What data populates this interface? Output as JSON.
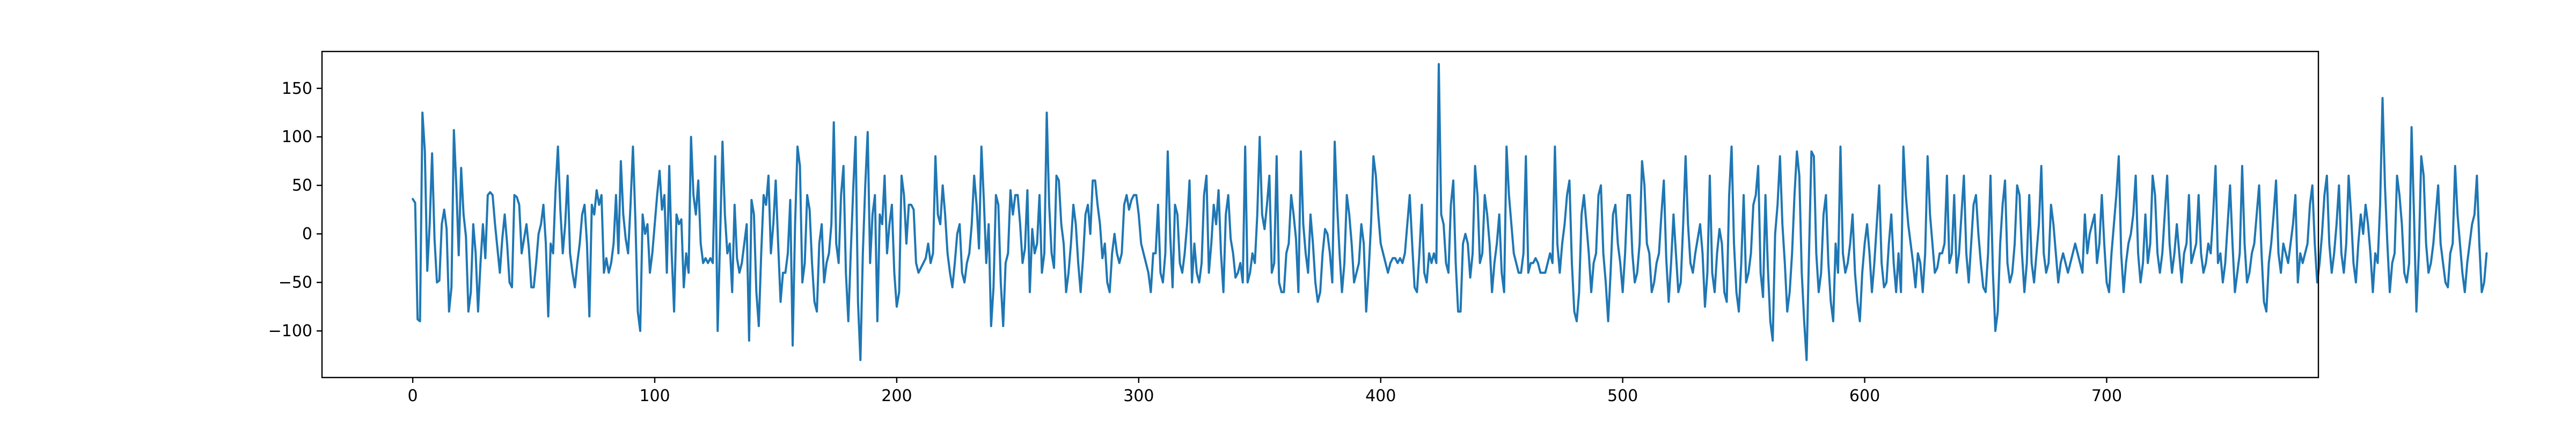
{
  "chart_data": {
    "type": "line",
    "title": "",
    "xlabel": "",
    "ylabel": "",
    "xlim": [
      -37.5,
      787.5
    ],
    "ylim": [
      -148,
      188
    ],
    "x_ticks": [
      0,
      100,
      200,
      300,
      400,
      500,
      600,
      700
    ],
    "y_ticks": [
      -100,
      -50,
      0,
      50,
      100,
      150
    ],
    "x_tick_labels": [
      "0",
      "100",
      "200",
      "300",
      "400",
      "500",
      "600",
      "700"
    ],
    "y_tick_labels": [
      "−100",
      "−50",
      "0",
      "50",
      "100",
      "150"
    ],
    "grid": false,
    "legend": "none",
    "series": [
      {
        "color": "#1f77b4",
        "x_start": 0,
        "x_step": 1,
        "values": [
          36,
          32,
          -88,
          -90,
          125,
          85,
          -38,
          10,
          83,
          -5,
          -50,
          -48,
          10,
          25,
          5,
          -80,
          -55,
          107,
          50,
          -22,
          68,
          20,
          -3,
          -80,
          -60,
          10,
          -20,
          -80,
          -30,
          10,
          -25,
          40,
          43,
          40,
          10,
          -15,
          -40,
          -5,
          20,
          -10,
          -50,
          -55,
          40,
          38,
          30,
          -20,
          -5,
          10,
          -15,
          -55,
          -55,
          -30,
          0,
          10,
          30,
          -10,
          -85,
          -10,
          -20,
          45,
          90,
          25,
          -20,
          10,
          60,
          -20,
          -40,
          -55,
          -30,
          -10,
          20,
          30,
          -10,
          -85,
          30,
          20,
          45,
          30,
          40,
          -40,
          -25,
          -40,
          -30,
          -10,
          40,
          -20,
          75,
          20,
          -5,
          -20,
          30,
          90,
          15,
          -80,
          -100,
          20,
          0,
          10,
          -40,
          -20,
          10,
          40,
          65,
          25,
          40,
          -40,
          70,
          -20,
          -80,
          20,
          10,
          15,
          -55,
          -20,
          -40,
          100,
          40,
          20,
          55,
          -10,
          -30,
          -25,
          -30,
          -25,
          -30,
          80,
          -100,
          -5,
          95,
          20,
          -20,
          -10,
          -60,
          30,
          -25,
          -40,
          -30,
          -10,
          10,
          -110,
          35,
          20,
          -60,
          -95,
          -20,
          40,
          30,
          60,
          -20,
          10,
          55,
          -10,
          -70,
          -40,
          -40,
          -20,
          35,
          -115,
          10,
          90,
          70,
          -50,
          -30,
          40,
          25,
          -30,
          -70,
          -80,
          -10,
          10,
          -50,
          -30,
          -20,
          10,
          115,
          -10,
          -30,
          40,
          70,
          -40,
          -90,
          -20,
          45,
          100,
          -70,
          -130,
          -20,
          50,
          105,
          -30,
          20,
          40,
          -90,
          20,
          10,
          60,
          -20,
          10,
          30,
          -40,
          -75,
          -60,
          60,
          40,
          -10,
          30,
          30,
          25,
          -30,
          -40,
          -35,
          -30,
          -25,
          -10,
          -30,
          -20,
          80,
          20,
          10,
          50,
          20,
          -20,
          -40,
          -55,
          -30,
          0,
          10,
          -40,
          -50,
          -30,
          -20,
          10,
          60,
          30,
          -15,
          90,
          35,
          -30,
          10,
          -95,
          -55,
          40,
          30,
          -50,
          -95,
          -30,
          -20,
          45,
          20,
          40,
          40,
          10,
          -30,
          -15,
          45,
          -60,
          5,
          -20,
          -10,
          40,
          -40,
          -20,
          125,
          30,
          -20,
          -35,
          60,
          55,
          10,
          -10,
          -60,
          -40,
          -10,
          30,
          10,
          -30,
          -60,
          -25,
          20,
          30,
          0,
          55,
          55,
          30,
          10,
          -25,
          -10,
          -50,
          -60,
          -20,
          0,
          -20,
          -30,
          -20,
          30,
          40,
          25,
          35,
          40,
          40,
          20,
          -10,
          -20,
          -30,
          -40,
          -60,
          -20,
          -20,
          30,
          -40,
          -50,
          -20,
          85,
          0,
          -55,
          30,
          20,
          -30,
          -40,
          -20,
          10,
          55,
          -50,
          -10,
          -40,
          -50,
          -30,
          40,
          60,
          -40,
          -10,
          30,
          10,
          45,
          -20,
          -60,
          20,
          40,
          -5,
          -20,
          -45,
          -40,
          -30,
          -50,
          90,
          -50,
          -40,
          -20,
          -30,
          20,
          100,
          20,
          5,
          30,
          60,
          -40,
          -30,
          80,
          -50,
          -60,
          -60,
          -20,
          -10,
          40,
          20,
          -5,
          -60,
          85,
          10,
          -20,
          -40,
          20,
          -10,
          -50,
          -70,
          -60,
          -20,
          5,
          0,
          -20,
          -50,
          95,
          30,
          -20,
          -60,
          -30,
          40,
          20,
          -10,
          -50,
          -40,
          -30,
          10,
          -10,
          -80,
          -40,
          10,
          80,
          60,
          20,
          -10,
          -20,
          -30,
          -40,
          -30,
          -25,
          -25,
          -30,
          -25,
          -30,
          -20,
          10,
          40,
          -10,
          -55,
          -60,
          -20,
          30,
          -40,
          -50,
          -20,
          -30,
          -20,
          -30,
          175,
          20,
          10,
          -30,
          -40,
          30,
          55,
          -30,
          -80,
          -80,
          -10,
          0,
          -10,
          -45,
          -20,
          70,
          40,
          -30,
          -20,
          40,
          20,
          -10,
          -60,
          -30,
          -10,
          20,
          -40,
          -60,
          90,
          40,
          10,
          -20,
          -30,
          -40,
          -40,
          -20,
          80,
          -40,
          -30,
          -30,
          -25,
          -30,
          -40,
          -40,
          -40,
          -30,
          -20,
          -30,
          90,
          -10,
          -40,
          -10,
          10,
          40,
          55,
          -30,
          -80,
          -90,
          -60,
          20,
          40,
          10,
          -20,
          -60,
          -30,
          -20,
          40,
          50,
          -20,
          -50,
          -90,
          -40,
          20,
          30,
          -10,
          -30,
          -60,
          -20,
          40,
          40,
          -20,
          -50,
          -40,
          -10,
          75,
          50,
          -10,
          -20,
          -60,
          -50,
          -30,
          -20,
          20,
          55,
          -25,
          -70,
          -30,
          20,
          -20,
          -60,
          -50,
          10,
          80,
          10,
          -30,
          -40,
          -20,
          -5,
          10,
          -20,
          -75,
          -40,
          60,
          -40,
          -60,
          -20,
          5,
          -10,
          -60,
          -70,
          40,
          90,
          -10,
          -60,
          -80,
          -30,
          40,
          -50,
          -40,
          -20,
          30,
          40,
          70,
          -40,
          -65,
          40,
          -35,
          -90,
          -110,
          0,
          30,
          80,
          10,
          -30,
          -80,
          -60,
          -20,
          40,
          85,
          60,
          -40,
          -90,
          -130,
          -20,
          85,
          80,
          -20,
          -60,
          -40,
          20,
          40,
          -30,
          -70,
          -90,
          -10,
          -40,
          90,
          -20,
          -40,
          -30,
          -10,
          20,
          -40,
          -70,
          -90,
          -40,
          -10,
          10,
          -20,
          -60,
          -30,
          10,
          50,
          -30,
          -55,
          -50,
          -10,
          20,
          -30,
          -60,
          -20,
          -60,
          90,
          40,
          10,
          -10,
          -30,
          -55,
          -20,
          -30,
          -60,
          -20,
          80,
          20,
          -10,
          -40,
          -35,
          -20,
          -20,
          -10,
          60,
          -30,
          -20,
          40,
          -40,
          -20,
          20,
          60,
          -20,
          -50,
          -10,
          30,
          40,
          0,
          -30,
          -55,
          -60,
          -20,
          60,
          -40,
          -100,
          -80,
          -10,
          30,
          55,
          -30,
          -50,
          -40,
          -10,
          50,
          40,
          -20,
          -60,
          -30,
          40,
          -30,
          -50,
          -20,
          10,
          70,
          -20,
          -40,
          -30,
          30,
          10,
          -20,
          -50,
          -30,
          -20,
          -30,
          -40,
          -30,
          -20,
          -10,
          -20,
          -30,
          -40,
          20,
          -20,
          0,
          10,
          20,
          -30,
          -10,
          40,
          -10,
          -50,
          -60,
          -20,
          10,
          40,
          80,
          -20,
          -60,
          -30,
          -10,
          0,
          20,
          60,
          -20,
          -50,
          -30,
          20,
          -30,
          -10,
          60,
          40,
          -20,
          -40,
          -20,
          20,
          60,
          -10,
          -40,
          -20,
          10,
          -20,
          -50,
          -20,
          -10,
          40,
          -30,
          -20,
          -10,
          40,
          -20,
          -40,
          -30,
          -10,
          -20,
          20,
          70,
          -30,
          -20,
          -50,
          -30,
          10,
          50,
          -10,
          -60,
          -40,
          -20,
          70,
          -10,
          -50,
          -40,
          -20,
          -10,
          20,
          50,
          -20,
          -70,
          -80,
          -30,
          -10,
          20,
          55,
          -20,
          -40,
          -10,
          -20,
          -30,
          -10,
          10,
          40,
          -50,
          -20,
          -30,
          -20,
          -10,
          30,
          50,
          -10,
          -50,
          -30,
          0,
          40,
          60,
          -10,
          -40,
          -20,
          10,
          50,
          -20,
          -40,
          -10,
          60,
          20,
          -30,
          -50,
          -10,
          20,
          0,
          30,
          10,
          -20,
          -60,
          -20,
          -30,
          30,
          140,
          50,
          -10,
          -60,
          -30,
          -20,
          60,
          40,
          10,
          -40,
          -50,
          -30,
          110,
          20,
          -80,
          -20,
          80,
          60,
          -10,
          -40,
          -30,
          -10,
          20,
          50,
          -10,
          -30,
          -50,
          -55,
          -20,
          -10,
          70,
          20,
          -10,
          -40,
          -60,
          -30,
          -10,
          10,
          20,
          60,
          -10,
          -60,
          -50,
          -20
        ]
      }
    ]
  }
}
